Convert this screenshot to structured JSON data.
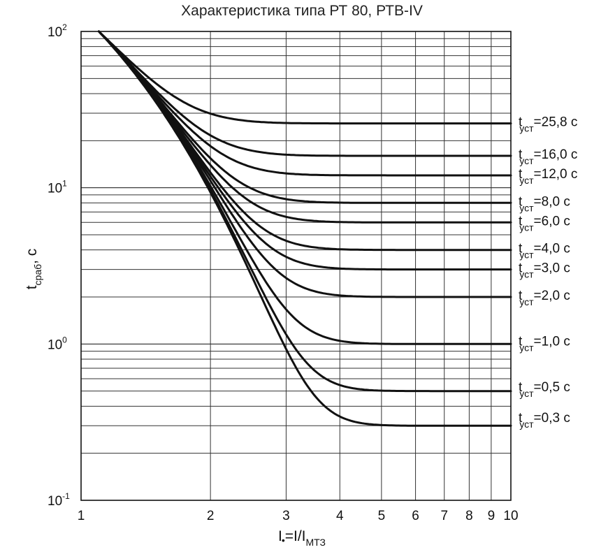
{
  "chart_data": {
    "type": "line",
    "title": "Характеристика типа РТ 80, РТВ-IV",
    "xscale": "log",
    "yscale": "log",
    "xlim": [
      1,
      10
    ],
    "ylim": [
      0.1,
      100
    ],
    "x_ticks": [
      {
        "value": 1,
        "label": "1"
      },
      {
        "value": 2,
        "label": "2"
      },
      {
        "value": 3,
        "label": "3"
      },
      {
        "value": 4,
        "label": "4"
      },
      {
        "value": 5,
        "label": "5"
      },
      {
        "value": 6,
        "label": "6"
      },
      {
        "value": 7,
        "label": "7"
      },
      {
        "value": 8,
        "label": "8"
      },
      {
        "value": 9,
        "label": "9"
      },
      {
        "value": 10,
        "label": "10"
      }
    ],
    "y_ticks": [
      {
        "value": 100,
        "base": "10",
        "exp": "2"
      },
      {
        "value": 10,
        "base": "10",
        "exp": "1"
      },
      {
        "value": 1,
        "base": "10",
        "exp": "0"
      },
      {
        "value": 0.1,
        "base": "10",
        "exp": "-1"
      }
    ],
    "xlabel": {
      "main": "I",
      "sub1": "•",
      "mid": "=I/I",
      "sub2": "МТЗ"
    },
    "ylabel": {
      "main": "t",
      "sub": "сраб",
      "tail": ", с"
    },
    "start_point": {
      "x": 1.1,
      "y": 100
    },
    "series": [
      {
        "name": "tуст=25,8 с",
        "label_main": "t",
        "label_sub": "уст",
        "label_value": "=25,8 с",
        "t_set": 25.8,
        "x_end": 10,
        "y_end": 25.8
      },
      {
        "name": "tуст=16,0 с",
        "label_main": "t",
        "label_sub": "уст",
        "label_value": "=16,0 с",
        "t_set": 16.0,
        "x_end": 10,
        "y_end": 16.0
      },
      {
        "name": "tуст=12,0 с",
        "label_main": "t",
        "label_sub": "уст",
        "label_value": "=12,0 с",
        "t_set": 12.0,
        "x_end": 10,
        "y_end": 12.0
      },
      {
        "name": "tуст=8,0 с",
        "label_main": "t",
        "label_sub": "уст",
        "label_value": "=8,0 с",
        "t_set": 8.0,
        "x_end": 10,
        "y_end": 8.0
      },
      {
        "name": "tуст=6,0 с",
        "label_main": "t",
        "label_sub": "уст",
        "label_value": "=6,0 с",
        "t_set": 6.0,
        "x_end": 10,
        "y_end": 6.0
      },
      {
        "name": "tуст=4,0 с",
        "label_main": "t",
        "label_sub": "уст",
        "label_value": "=4,0 с",
        "t_set": 4.0,
        "x_end": 10,
        "y_end": 4.0
      },
      {
        "name": "tуст=3,0 с",
        "label_main": "t",
        "label_sub": "уст",
        "label_value": "=3,0 с",
        "t_set": 3.0,
        "x_end": 10,
        "y_end": 3.0
      },
      {
        "name": "tуст=2,0 с",
        "label_main": "t",
        "label_sub": "уст",
        "label_value": "=2,0 с",
        "t_set": 2.0,
        "x_end": 10,
        "y_end": 2.0
      },
      {
        "name": "tуст=1,0 с",
        "label_main": "t",
        "label_sub": "уст",
        "label_value": "=1,0 с",
        "t_set": 1.0,
        "x_end": 10,
        "y_end": 1.02
      },
      {
        "name": "tуст=0,5 с",
        "label_main": "t",
        "label_sub": "уст",
        "label_value": "=0,5 с",
        "t_set": 0.5,
        "x_end": 10,
        "y_end": 0.52
      },
      {
        "name": "tуст=0,3 с",
        "label_main": "t",
        "label_sub": "уст",
        "label_value": "=0,3 с",
        "t_set": 0.3,
        "x_end": 10,
        "y_end": 0.33
      }
    ]
  }
}
